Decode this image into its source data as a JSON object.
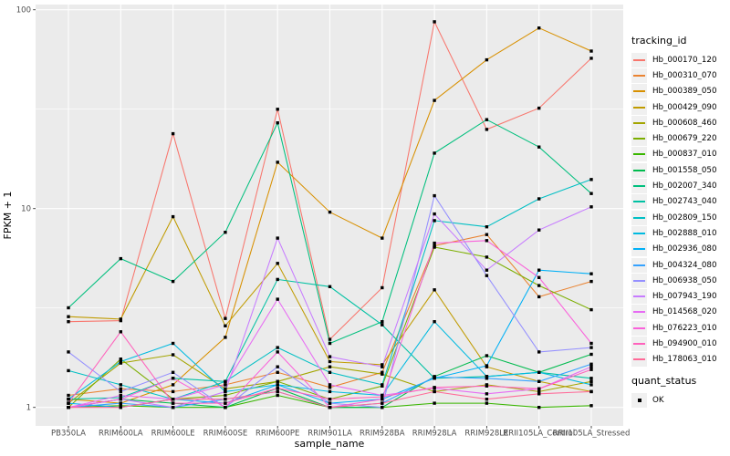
{
  "chart": {
    "x_axis_title": "sample_name",
    "y_axis_title": "FPKM + 1",
    "y_tick_labels": [
      "1",
      "10",
      "100"
    ]
  },
  "legend": {
    "tracking_title": "tracking_id",
    "quant_title": "quant_status",
    "quant_items": [
      "OK"
    ]
  },
  "chart_data": {
    "type": "line",
    "x_type": "categorical",
    "y_scale": "log10",
    "ylim": [
      0.85,
      105
    ],
    "y_major_ticks": [
      1,
      10,
      100
    ],
    "y_minor_ticks": [
      3.162,
      31.62
    ],
    "grid": "white major and minor on gray panel",
    "panel_background": "#EBEBEB",
    "marker": "black-square",
    "legend_position": "right",
    "xlabel": "sample_name",
    "ylabel": "FPKM + 1",
    "categories": [
      "PB350LA",
      "RRIM600LA",
      "RRIM600LE",
      "RRIM600SE",
      "RRIM600PE",
      "RRIM901LA",
      "RRIM928BA",
      "RRIM928LA",
      "RRIM928LE",
      "RRII105LA_Control",
      "RRII105LA_Stressed"
    ],
    "series": [
      {
        "name": "Hb_000170_120",
        "color": "#F8766D",
        "values": [
          2.7,
          2.73,
          23.8,
          2.8,
          31.6,
          2.2,
          4.0,
          87,
          25,
          32,
          57
        ]
      },
      {
        "name": "Hb_000310_070",
        "color": "#EA8331",
        "values": [
          1.15,
          1.24,
          1.2,
          1.3,
          1.5,
          1.26,
          1.5,
          6.5,
          7.4,
          3.6,
          4.3
        ]
      },
      {
        "name": "Hb_000389_050",
        "color": "#D89000",
        "values": [
          1.1,
          1.05,
          1.3,
          2.25,
          17.1,
          9.6,
          7.1,
          35,
          56,
          81,
          62
        ]
      },
      {
        "name": "Hb_000429_090",
        "color": "#C09B00",
        "values": [
          2.86,
          2.78,
          9.1,
          2.57,
          5.3,
          1.7,
          1.64,
          3.9,
          1.6,
          1.35,
          1.2
        ]
      },
      {
        "name": "Hb_000608_460",
        "color": "#A3A500",
        "values": [
          1.05,
          1.67,
          1.84,
          1.24,
          1.35,
          1.6,
          1.47,
          1.2,
          1.3,
          1.2,
          1.35
        ]
      },
      {
        "name": "Hb_000679_220",
        "color": "#7CAE00",
        "values": [
          1.0,
          1.75,
          1.1,
          1.15,
          1.35,
          1.1,
          1.28,
          6.4,
          5.7,
          4.1,
          3.1
        ]
      },
      {
        "name": "Hb_000837_010",
        "color": "#39B600",
        "values": [
          1.0,
          1.02,
          1.0,
          1.0,
          1.15,
          1.0,
          1.0,
          1.05,
          1.05,
          1.0,
          1.02
        ]
      },
      {
        "name": "Hb_001558_050",
        "color": "#00BB4E",
        "values": [
          1.0,
          1.1,
          1.05,
          1.0,
          1.25,
          1.0,
          1.0,
          1.43,
          1.82,
          1.5,
          1.85
        ]
      },
      {
        "name": "Hb_002007_340",
        "color": "#00BF7D",
        "values": [
          3.17,
          5.6,
          4.3,
          7.6,
          27,
          2.1,
          2.7,
          19,
          28,
          20.4,
          11.9
        ]
      },
      {
        "name": "Hb_002743_040",
        "color": "#00C1A3",
        "values": [
          1.1,
          1.12,
          1.4,
          1.35,
          4.4,
          4.05,
          2.6,
          1.4,
          1.43,
          1.5,
          1.4
        ]
      },
      {
        "name": "Hb_002809_150",
        "color": "#00BFC4",
        "values": [
          1.53,
          1.3,
          1.1,
          1.35,
          2.0,
          1.5,
          1.3,
          8.7,
          8.1,
          11.2,
          14
        ]
      },
      {
        "name": "Hb_002888_010",
        "color": "#00BAE0",
        "values": [
          1.1,
          1.7,
          2.1,
          1.2,
          1.3,
          1.2,
          1.15,
          2.7,
          1.43,
          1.5,
          1.3
        ]
      },
      {
        "name": "Hb_002936_080",
        "color": "#00B0F6",
        "values": [
          1.05,
          1.0,
          1.1,
          1.05,
          1.3,
          1.05,
          1.1,
          1.4,
          1.62,
          4.9,
          4.7
        ]
      },
      {
        "name": "Hb_004324_080",
        "color": "#35A2FF",
        "values": [
          1.0,
          1.05,
          1.0,
          1.1,
          1.2,
          1.0,
          1.05,
          1.42,
          1.4,
          1.35,
          1.65
        ]
      },
      {
        "name": "Hb_006938_050",
        "color": "#9590FF",
        "values": [
          1.9,
          1.2,
          1.5,
          1.0,
          1.6,
          1.05,
          1.0,
          11.6,
          4.6,
          1.9,
          2.0
        ]
      },
      {
        "name": "Hb_007943_190",
        "color": "#C77CFF",
        "values": [
          1.0,
          1.1,
          1.0,
          1.2,
          7.1,
          1.8,
          1.6,
          9.4,
          4.9,
          7.8,
          10.2
        ]
      },
      {
        "name": "Hb_014568_020",
        "color": "#E76BF3",
        "values": [
          1.0,
          1.15,
          1.1,
          1.3,
          3.5,
          1.3,
          1.15,
          1.25,
          1.17,
          1.24,
          1.6
        ]
      },
      {
        "name": "Hb_076223_010",
        "color": "#FA62DB",
        "values": [
          1.0,
          1.1,
          1.4,
          1.0,
          1.9,
          1.0,
          1.1,
          6.7,
          6.9,
          4.5,
          2.1
        ]
      },
      {
        "name": "Hb_094900_010",
        "color": "#FF62BC",
        "values": [
          1.05,
          2.4,
          1.05,
          1.05,
          1.25,
          1.1,
          1.13,
          1.26,
          1.28,
          1.24,
          1.55
        ]
      },
      {
        "name": "Hb_178063_010",
        "color": "#FF6A98",
        "values": [
          1.0,
          1.0,
          1.1,
          1.1,
          1.2,
          1.0,
          1.05,
          1.2,
          1.1,
          1.17,
          1.2
        ]
      }
    ]
  }
}
